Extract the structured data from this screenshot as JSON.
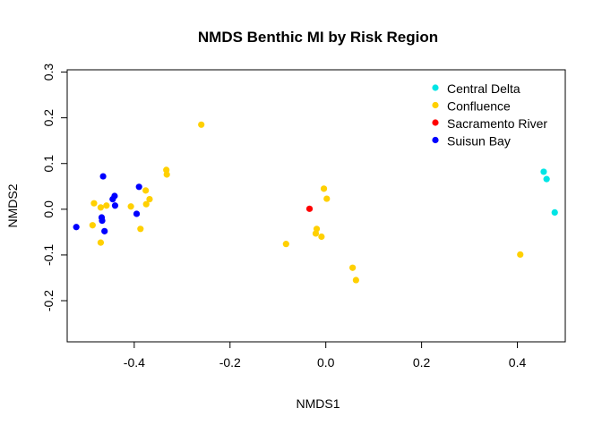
{
  "colors": {
    "central_delta": "#00e5e5",
    "confluence": "#ffd000",
    "sacramento_river": "#ff0000",
    "suisun_bay": "#0000ff",
    "axis": "#000000",
    "background": "#ffffff"
  },
  "chart_data": {
    "type": "scatter",
    "title": "NMDS Benthic MI by Risk Region",
    "xlabel": "NMDS1",
    "ylabel": "NMDS2",
    "xlim": [
      -0.54,
      0.5
    ],
    "ylim": [
      -0.29,
      0.305
    ],
    "xticks": [
      -0.4,
      -0.2,
      0.0,
      0.2,
      0.4
    ],
    "xtick_labels": [
      "-0.4",
      "-0.2",
      "0.0",
      "0.2",
      "0.4"
    ],
    "yticks": [
      -0.2,
      -0.1,
      0.0,
      0.1,
      0.2,
      0.3
    ],
    "ytick_labels": [
      "-0.2",
      "-0.1",
      "0.0",
      "0.1",
      "0.2",
      "0.3"
    ],
    "grid": false,
    "legend_position": "top-right",
    "series": [
      {
        "name": "Central Delta",
        "color": "#00e5e5",
        "points": [
          [
            0.455,
            0.082
          ],
          [
            0.461,
            0.066
          ],
          [
            0.478,
            -0.007
          ]
        ]
      },
      {
        "name": "Confluence",
        "color": "#ffd000",
        "points": [
          [
            -0.26,
            0.185
          ],
          [
            -0.333,
            0.086
          ],
          [
            -0.332,
            0.076
          ],
          [
            -0.376,
            0.041
          ],
          [
            -0.368,
            0.022
          ],
          [
            -0.375,
            0.011
          ],
          [
            -0.407,
            0.006
          ],
          [
            -0.484,
            0.013
          ],
          [
            -0.47,
            0.004
          ],
          [
            -0.458,
            0.008
          ],
          [
            -0.387,
            -0.043
          ],
          [
            -0.487,
            -0.035
          ],
          [
            -0.47,
            -0.073
          ],
          [
            -0.004,
            0.045
          ],
          [
            0.002,
            0.023
          ],
          [
            -0.019,
            -0.043
          ],
          [
            -0.021,
            -0.053
          ],
          [
            -0.009,
            -0.06
          ],
          [
            -0.083,
            -0.076
          ],
          [
            0.056,
            -0.128
          ],
          [
            0.063,
            -0.155
          ],
          [
            0.406,
            -0.099
          ]
        ]
      },
      {
        "name": "Sacramento River",
        "color": "#ff0000",
        "points": [
          [
            -0.034,
            0.001
          ]
        ]
      },
      {
        "name": "Suisun Bay",
        "color": "#0000ff",
        "points": [
          [
            -0.465,
            0.072
          ],
          [
            -0.39,
            0.049
          ],
          [
            -0.441,
            0.029
          ],
          [
            -0.445,
            0.022
          ],
          [
            -0.44,
            0.008
          ],
          [
            -0.468,
            -0.018
          ],
          [
            -0.467,
            -0.025
          ],
          [
            -0.395,
            -0.01
          ],
          [
            -0.521,
            -0.039
          ],
          [
            -0.462,
            -0.048
          ]
        ]
      }
    ]
  }
}
